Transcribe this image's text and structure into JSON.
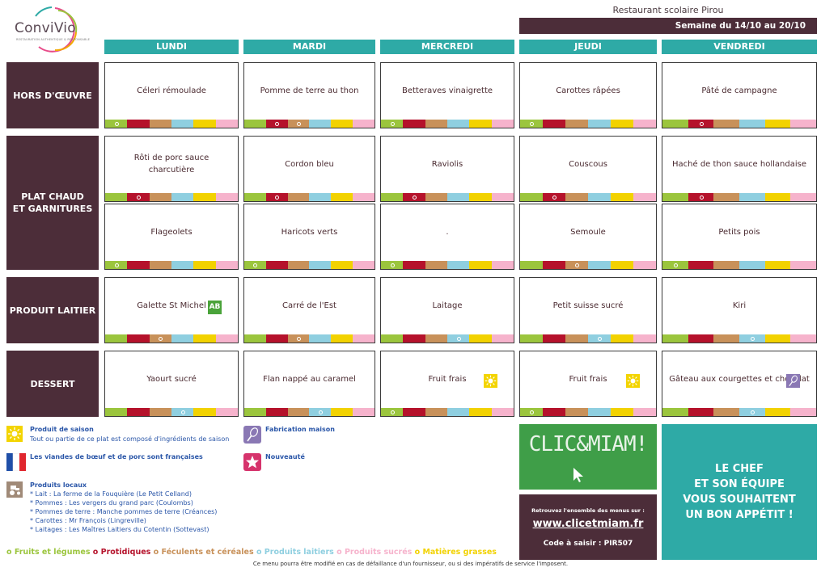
{
  "logo": {
    "name": "ConviVio",
    "tagline": "RESTAURATION AUTHENTIQUE & RESPONSABLE"
  },
  "header": {
    "restaurant": "Restaurant scolaire Pirou",
    "week": "Semaine du 14/10 au 20/10"
  },
  "days": [
    "LUNDI",
    "MARDI",
    "MERCREDI",
    "JEUDI",
    "VENDREDI"
  ],
  "categories": {
    "hors_doeuvre": "HORS D'ŒUVRE",
    "plat_line1": "PLAT CHAUD",
    "plat_line2": "ET GARNITURES",
    "laitier": "PRODUIT LAITIER",
    "dessert": "DESSERT"
  },
  "menu": {
    "hors_doeuvre": [
      "Céleri rémoulade",
      "Pomme de terre au thon",
      "Betteraves vinaigrette",
      "Carottes râpées",
      "Pâté de campagne"
    ],
    "plat": [
      "Rôti de porc sauce charcutière",
      "Cordon bleu",
      "Raviolis",
      "Couscous",
      "Haché de thon sauce hollandaise"
    ],
    "garniture": [
      "Flageolets",
      "Haricots verts",
      ".",
      "Semoule",
      "Petits pois"
    ],
    "laitier": [
      "Galette St Michel",
      "Carré de l'Est",
      "Laitage",
      "Petit suisse sucré",
      "Kiri"
    ],
    "dessert": [
      "Yaourt sucré",
      "Flan nappé au caramel",
      "Fruit frais",
      "Fruit frais",
      "Gâteau aux courgettes et chocolat"
    ]
  },
  "strip_colors": [
    "#9bc53d",
    "#b5122b",
    "#c8915a",
    "#8fcfe0",
    "#f2d200",
    "#f6b3cc"
  ],
  "colors": {
    "accent": "#2eaaa6",
    "dark": "#4c2d39",
    "season": "#f3d400",
    "homemade": "#8a78b4",
    "bio": "#4aa33a",
    "clic": "#3f9e48"
  },
  "legend": {
    "season_title": "Produit de saison",
    "season_text": "Tout ou partie de ce plat est composé d'ingrédients de saison",
    "homemade_title": "Fabrication maison",
    "french_text": "Les viandes de bœuf et de porc sont françaises",
    "new_title": "Nouveauté",
    "local_title": "Produits locaux",
    "local_items": [
      "* Lait : La ferme de la Fouquière (Le Petit Celland)",
      "* Pommes : Les vergers du grand parc (Coulombs)",
      "* Pommes de terre : Manche pommes de terre (Créances)",
      "* Carottes : Mr François (Lingreville)",
      "* Laitages : Les Maîtres Laitiers du Cotentin (Sottevast)"
    ]
  },
  "bio_label": "AB",
  "clic": {
    "logo_text": "CLIC&MIAM!",
    "retrouvez": "Retrouvez l'ensemble des menus sur :",
    "url": "www.clicetmiam.fr",
    "code": "Code à saisir : PIR507"
  },
  "chef": {
    "line1": "LE CHEF",
    "line2": "ET SON ÉQUIPE",
    "line3": "VOUS SOUHAITENT",
    "line4": "UN BON APPÉTIT !"
  },
  "food_groups": [
    {
      "label": "o Fruits et légumes",
      "color": "#9bc53d"
    },
    {
      "label": "o Protidiques",
      "color": "#b5122b"
    },
    {
      "label": "o Féculents et céréales",
      "color": "#c8915a"
    },
    {
      "label": "o Produits laitiers",
      "color": "#8fcfe0"
    },
    {
      "label": "o Produits sucrés",
      "color": "#f6b3cc"
    },
    {
      "label": "o Matières grasses",
      "color": "#f2d200"
    }
  ],
  "disclaimer": "Ce menu pourra être modifié en cas de défaillance d'un fournisseur, ou si des impératifs de service l'imposent."
}
